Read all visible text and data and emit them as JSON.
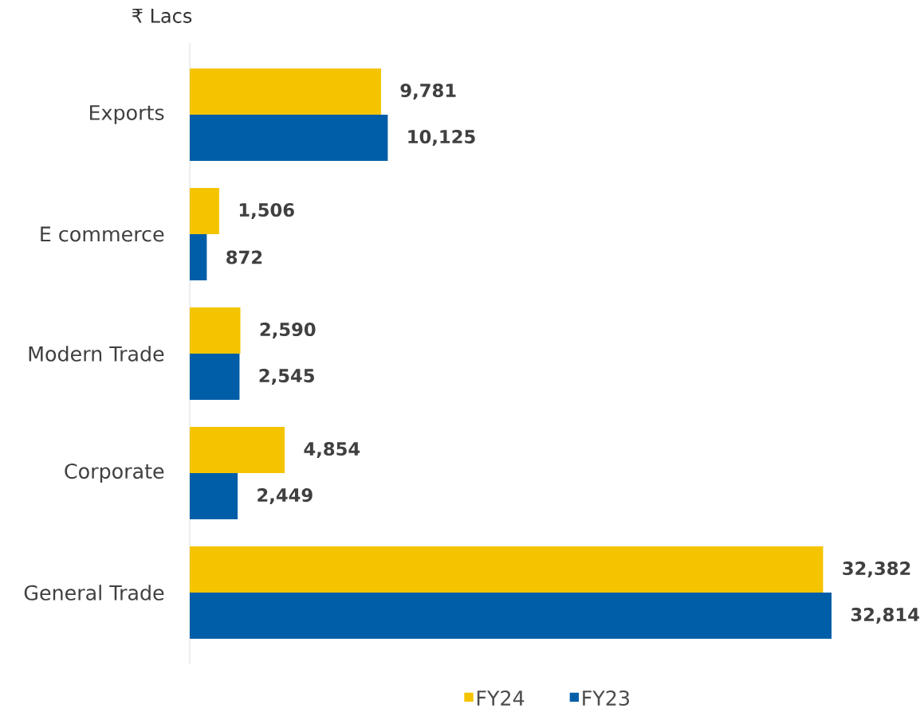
{
  "chart_data": {
    "type": "bar",
    "orientation": "horizontal",
    "title": "₹ Lacs",
    "categories": [
      "Exports",
      "E commerce",
      "Modern Trade",
      "Corporate",
      "General Trade"
    ],
    "series": [
      {
        "name": "FY24",
        "color": "#f5c400",
        "values": [
          9781,
          1506,
          2590,
          4854,
          32382
        ],
        "value_labels": [
          "9,781",
          "1,506",
          "2,590",
          "4,854",
          "32,382"
        ]
      },
      {
        "name": "FY23",
        "color": "#005ea8",
        "values": [
          10125,
          872,
          2545,
          2449,
          32814
        ],
        "value_labels": [
          "10,125",
          "872",
          "2,545",
          "2,449",
          "32,814"
        ]
      }
    ],
    "legend": "bottom"
  }
}
